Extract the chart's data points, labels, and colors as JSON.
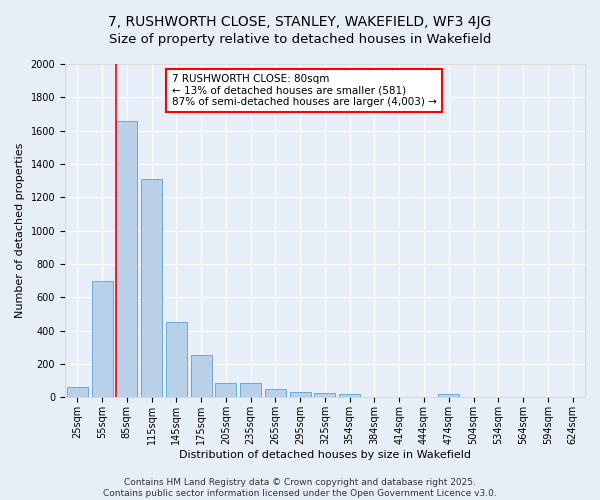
{
  "title_line1": "7, RUSHWORTH CLOSE, STANLEY, WAKEFIELD, WF3 4JG",
  "title_line2": "Size of property relative to detached houses in Wakefield",
  "xlabel": "Distribution of detached houses by size in Wakefield",
  "ylabel": "Number of detached properties",
  "categories": [
    "25sqm",
    "55sqm",
    "85sqm",
    "115sqm",
    "145sqm",
    "175sqm",
    "205sqm",
    "235sqm",
    "265sqm",
    "295sqm",
    "325sqm",
    "354sqm",
    "384sqm",
    "414sqm",
    "444sqm",
    "474sqm",
    "504sqm",
    "534sqm",
    "564sqm",
    "594sqm",
    "624sqm"
  ],
  "values": [
    65,
    700,
    1660,
    1310,
    450,
    255,
    88,
    85,
    48,
    35,
    28,
    20,
    0,
    0,
    0,
    18,
    0,
    0,
    0,
    0,
    0
  ],
  "bar_color": "#b8d0e8",
  "bar_edge_color": "#6aaad4",
  "vline_color": "red",
  "annotation_text": "7 RUSHWORTH CLOSE: 80sqm\n← 13% of detached houses are smaller (581)\n87% of semi-detached houses are larger (4,003) →",
  "annotation_box_color": "white",
  "annotation_box_edge_color": "red",
  "ylim": [
    0,
    2000
  ],
  "yticks": [
    0,
    200,
    400,
    600,
    800,
    1000,
    1200,
    1400,
    1600,
    1800,
    2000
  ],
  "background_color": "#e8eef8",
  "grid_color": "white",
  "footer_line1": "Contains HM Land Registry data © Crown copyright and database right 2025.",
  "footer_line2": "Contains public sector information licensed under the Open Government Licence v3.0.",
  "title_fontsize": 10,
  "axis_label_fontsize": 8,
  "tick_fontsize": 7,
  "annotation_fontsize": 7.5,
  "footer_fontsize": 6.5
}
